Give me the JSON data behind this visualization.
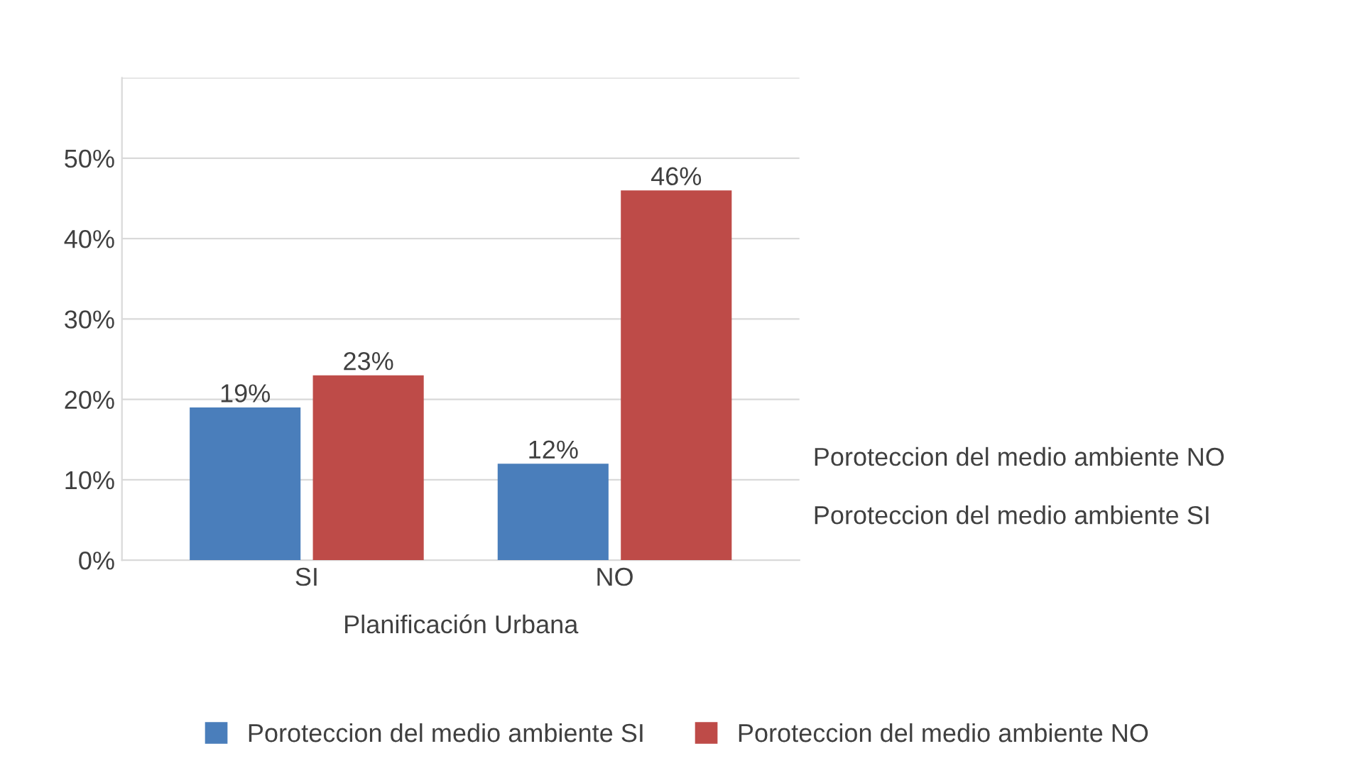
{
  "chart_data": {
    "type": "bar",
    "xlabel": "Planificación Urbana",
    "categories": [
      "SI",
      "NO"
    ],
    "series": [
      {
        "name": "Poroteccion del medio ambiente SI",
        "color": "#4a7ebb",
        "values": [
          19,
          12
        ],
        "value_labels": [
          "19%",
          "12%"
        ]
      },
      {
        "name": "Poroteccion del medio ambiente NO",
        "color": "#be4b48",
        "values": [
          23,
          46
        ],
        "value_labels": [
          "23%",
          "46%"
        ]
      }
    ],
    "ylim": [
      0,
      60
    ],
    "yticks": [
      {
        "value": 0,
        "label": "0%"
      },
      {
        "value": 10,
        "label": "10%"
      },
      {
        "value": 20,
        "label": "20%"
      },
      {
        "value": 30,
        "label": "30%"
      },
      {
        "value": 40,
        "label": "40%"
      },
      {
        "value": 50,
        "label": "50%"
      },
      {
        "value": 60,
        "label": null
      }
    ],
    "grid": "y",
    "legend": "bottom",
    "annotations": [
      "Poroteccion del medio ambiente NO",
      "Poroteccion del medio ambiente SI"
    ]
  }
}
